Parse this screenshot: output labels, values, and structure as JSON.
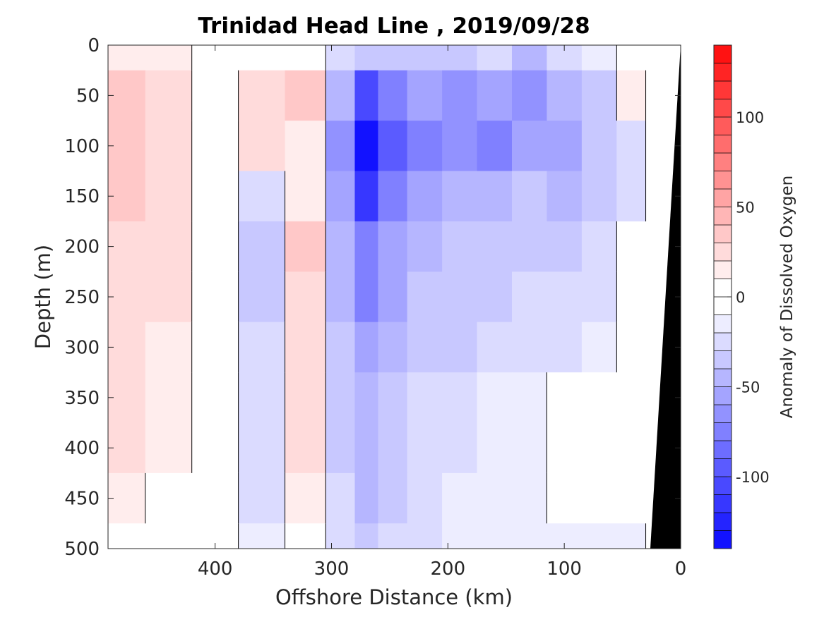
{
  "chart_data": {
    "type": "heatmap",
    "title": "Trinidad Head Line , 2019/09/28",
    "xlabel": "Offshore Distance (km)",
    "ylabel": "Depth (m)",
    "colorbar_label": "Anomaly of Dissolved Oxygen",
    "x_reversed": true,
    "y_reversed": true,
    "xlim": [
      0,
      492
    ],
    "ylim": [
      0,
      500
    ],
    "xticks": [
      "400",
      "300",
      "200",
      "100",
      "0"
    ],
    "yticks": [
      "0",
      "50",
      "100",
      "150",
      "200",
      "250",
      "300",
      "350",
      "400",
      "450",
      "500"
    ],
    "colorbar_ticks": [
      "100",
      "50",
      "0",
      "-50",
      "-100"
    ],
    "clim": [
      -140,
      140
    ],
    "contour_levels_step": 10,
    "colormap": [
      "#0000ff",
      "#ffffff",
      "#ff0000"
    ],
    "zero_contour_color": "#000000",
    "bathymetry_color": "#000000",
    "x_distance_km": [
      480,
      440,
      400,
      360,
      320,
      290,
      270,
      250,
      220,
      190,
      160,
      130,
      100,
      70,
      40,
      20
    ],
    "depth_m": [
      0,
      50,
      100,
      150,
      200,
      250,
      300,
      350,
      400,
      450,
      500
    ],
    "oxygen_anomaly": [
      [
        10,
        10,
        0,
        0,
        0,
        -20,
        -30,
        -30,
        -30,
        -30,
        -20,
        -40,
        -20,
        -10,
        0,
        0
      ],
      [
        30,
        20,
        0,
        20,
        30,
        -40,
        -100,
        -70,
        -50,
        -60,
        -50,
        -60,
        -40,
        -30,
        10,
        0
      ],
      [
        30,
        20,
        0,
        20,
        10,
        -60,
        -130,
        -90,
        -70,
        -60,
        -70,
        -50,
        -50,
        -30,
        -20,
        0
      ],
      [
        30,
        20,
        0,
        -20,
        10,
        -50,
        -110,
        -70,
        -50,
        -40,
        -40,
        -30,
        -40,
        -30,
        -20,
        0
      ],
      [
        20,
        20,
        0,
        -30,
        30,
        -40,
        -70,
        -50,
        -40,
        -30,
        -30,
        -30,
        -30,
        -20,
        0,
        0
      ],
      [
        20,
        20,
        0,
        -30,
        20,
        -40,
        -70,
        -50,
        -30,
        -30,
        -30,
        -20,
        -20,
        -20,
        0,
        0
      ],
      [
        20,
        10,
        0,
        -20,
        20,
        -30,
        -50,
        -40,
        -30,
        -30,
        -20,
        -20,
        -20,
        -10,
        0,
        0
      ],
      [
        20,
        10,
        0,
        -20,
        20,
        -30,
        -40,
        -30,
        -20,
        -20,
        -10,
        -10,
        0,
        0,
        0,
        0
      ],
      [
        20,
        10,
        0,
        -20,
        20,
        -30,
        -40,
        -30,
        -20,
        -20,
        -10,
        -10,
        0,
        0,
        0,
        0
      ],
      [
        10,
        0,
        0,
        -20,
        10,
        -20,
        -40,
        -30,
        -20,
        -10,
        -10,
        -10,
        0,
        0,
        0,
        0
      ],
      [
        0,
        0,
        0,
        -10,
        0,
        -20,
        -30,
        -20,
        -20,
        -10,
        -10,
        -10,
        -10,
        -10,
        -10,
        0
      ]
    ]
  }
}
